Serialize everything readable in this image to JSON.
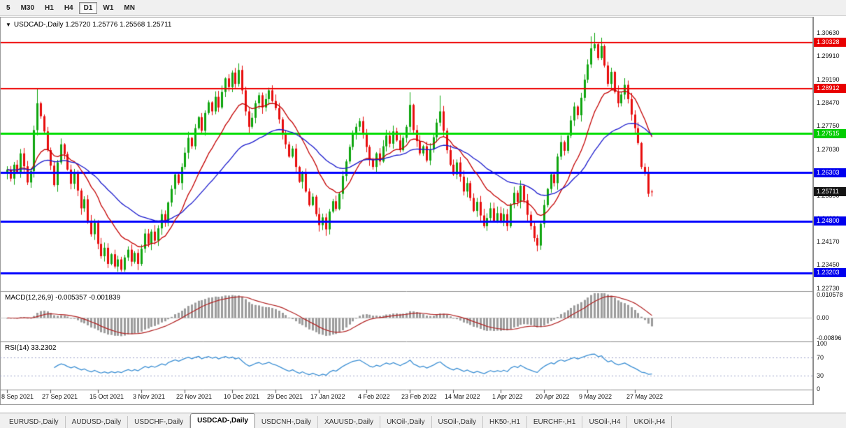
{
  "toolbar": {
    "timeframes": [
      "5",
      "M30",
      "H1",
      "H4",
      "D1",
      "W1",
      "MN"
    ],
    "active": "D1"
  },
  "header": {
    "dropdown_icon": "▼",
    "symbol": "USDCAD-,Daily",
    "ohlc": "1.25720 1.25776 1.25568 1.25711"
  },
  "price_axis": {
    "labels": [
      {
        "text": "1.30630",
        "price": 1.3063
      },
      {
        "text": "1.29910",
        "price": 1.2991
      },
      {
        "text": "1.29190",
        "price": 1.2919
      },
      {
        "text": "1.28470",
        "price": 1.2847
      },
      {
        "text": "1.27750",
        "price": 1.2775
      },
      {
        "text": "1.27030",
        "price": 1.2703
      },
      {
        "text": "1.26310",
        "price": 1.2631
      },
      {
        "text": "1.25590",
        "price": 1.2559
      },
      {
        "text": "1.24890",
        "price": 1.2489
      },
      {
        "text": "1.24170",
        "price": 1.2417
      },
      {
        "text": "1.23450",
        "price": 1.2345
      },
      {
        "text": "1.22730",
        "price": 1.2273
      }
    ]
  },
  "time_axis": {
    "labels": [
      {
        "text": "8 Sep 2021",
        "index": 0
      },
      {
        "text": "27 Sep 2021",
        "index": 13
      },
      {
        "text": "15 Oct 2021",
        "index": 27
      },
      {
        "text": "3 Nov 2021",
        "index": 40
      },
      {
        "text": "22 Nov 2021",
        "index": 53
      },
      {
        "text": "10 Dec 2021",
        "index": 67
      },
      {
        "text": "29 Dec 2021",
        "index": 80
      },
      {
        "text": "17 Jan 2022",
        "index": 93
      },
      {
        "text": "4 Feb 2022",
        "index": 107
      },
      {
        "text": "23 Feb 2022",
        "index": 120
      },
      {
        "text": "14 Mar 2022",
        "index": 133
      },
      {
        "text": "1 Apr 2022",
        "index": 147
      },
      {
        "text": "20 Apr 2022",
        "index": 160
      },
      {
        "text": "9 May 2022",
        "index": 173
      },
      {
        "text": "27 May 2022",
        "index": 187
      }
    ]
  },
  "chart_data": {
    "type": "candlestick",
    "symbol": "USDCAD",
    "timeframe": "Daily",
    "current_ohlc": {
      "open": "1.25720",
      "high": "1.25776",
      "low": "1.25568",
      "close": "1.25711"
    },
    "bull_color": "#0fa50f",
    "bear_color": "#e80d0d",
    "y_range": [
      1.2273,
      1.3063
    ],
    "first_open": 1.2628,
    "closes": [
      1.264,
      1.2612,
      1.2655,
      1.263,
      1.269,
      1.265,
      1.26,
      1.2635,
      1.2762,
      1.2845,
      1.2805,
      1.2758,
      1.27,
      1.2652,
      1.2592,
      1.2662,
      1.2718,
      1.2688,
      1.264,
      1.2596,
      1.263,
      1.2575,
      1.252,
      1.2548,
      1.2482,
      1.244,
      1.2475,
      1.241,
      1.2372,
      1.2398,
      1.2348,
      1.2378,
      1.234,
      1.2362,
      1.233,
      1.2368,
      1.2392,
      1.2355,
      1.2382,
      1.2348,
      1.2395,
      1.2442,
      1.241,
      1.2448,
      1.242,
      1.2458,
      1.2502,
      1.2475,
      1.2538,
      1.258,
      1.2625,
      1.2598,
      1.2648,
      1.2692,
      1.2738,
      1.2712,
      1.2768,
      1.2802,
      1.276,
      1.2815,
      1.2848,
      1.282,
      1.2865,
      1.2832,
      1.288,
      1.2922,
      1.2895,
      1.294,
      1.2905,
      1.2948,
      1.2885,
      1.282,
      1.2772,
      1.28,
      1.2845,
      1.287,
      1.2832,
      1.2858,
      1.2885,
      1.2852,
      1.283,
      1.2795,
      1.2752,
      1.2718,
      1.268,
      1.2705,
      1.2648,
      1.2602,
      1.2628,
      1.2572,
      1.253,
      1.2556,
      1.2502,
      1.2468,
      1.2492,
      1.2455,
      1.251,
      1.2542,
      1.2518,
      1.2565,
      1.262,
      1.2665,
      1.271,
      1.2748,
      1.2772,
      1.279,
      1.2752,
      1.271,
      1.2672,
      1.2648,
      1.269,
      1.2665,
      1.2712,
      1.2745,
      1.272,
      1.2758,
      1.273,
      1.27,
      1.2738,
      1.2772,
      1.284,
      1.2762,
      1.2728,
      1.269,
      1.2712,
      1.2668,
      1.2702,
      1.274,
      1.2785,
      1.282,
      1.276,
      1.27,
      1.2655,
      1.2625,
      1.2662,
      1.2618,
      1.2572,
      1.2598,
      1.2552,
      1.2512,
      1.254,
      1.2498,
      1.2465,
      1.249,
      1.252,
      1.2482,
      1.2505,
      1.2478,
      1.2502,
      1.2465,
      1.2532,
      1.2568,
      1.254,
      1.259,
      1.2545,
      1.25,
      1.2465,
      1.2428,
      1.2405,
      1.2472,
      1.253,
      1.258,
      1.2625,
      1.2598,
      1.268,
      1.2725,
      1.2698,
      1.2745,
      1.2792,
      1.2835,
      1.2808,
      1.2862,
      1.2918,
      1.2965,
      1.3015,
      1.3028,
      1.2985,
      1.3022,
      1.2962,
      1.2905,
      1.2942,
      1.288,
      1.2845,
      1.2872,
      1.2902,
      1.2858,
      1.281,
      1.2768,
      1.2722,
      1.2648,
      1.263,
      1.2565,
      1.25711
    ],
    "last_candle": {
      "open": 1.2572,
      "high": 1.25776,
      "low": 1.25568,
      "close": 1.25711
    },
    "wick_overrides": [
      {
        "i": 9,
        "high": 1.289
      },
      {
        "i": 120,
        "high": 1.2879
      },
      {
        "i": 129,
        "high": 1.2869
      },
      {
        "i": 174,
        "high": 1.3052
      },
      {
        "i": 175,
        "high": 1.3063
      },
      {
        "i": 177,
        "high": 1.3048
      }
    ],
    "overlays": [
      {
        "name": "ma-fast",
        "type": "ema",
        "period": 15,
        "color": "#c40000"
      },
      {
        "name": "ma-slow",
        "type": "ema",
        "period": 40,
        "color": "#1a1acd"
      }
    ],
    "hlines": [
      {
        "label": "1.30328",
        "price": 1.30328,
        "color": "#ee0000",
        "width": 2,
        "tag_bg": "#e80000"
      },
      {
        "label": "1.28912",
        "price": 1.28912,
        "color": "#ee0000",
        "width": 2,
        "tag_bg": "#e80000"
      },
      {
        "label": "1.27515",
        "price": 1.27515,
        "color": "#00dd00",
        "width": 3,
        "tag_bg": "#00cc00"
      },
      {
        "label": "1.26303",
        "price": 1.26303,
        "color": "#0000ff",
        "width": 3,
        "tag_bg": "#0000ee"
      },
      {
        "label": "1.24800",
        "price": 1.248,
        "color": "#0000ff",
        "width": 3,
        "tag_bg": "#0000ee"
      },
      {
        "label": "1.23203",
        "price": 1.23203,
        "color": "#0000ff",
        "width": 3,
        "tag_bg": "#0000ee"
      }
    ],
    "current_price": {
      "label": "1.25711",
      "price": 1.25711,
      "tag_bg": "#141414"
    }
  },
  "macd_panel": {
    "label": "MACD(12,26,9) -0.005357 -0.001839",
    "value": "-0.005357",
    "signal_value": "-0.001839",
    "params": {
      "fast": 12,
      "slow": 26,
      "signal": 9
    },
    "axis": [
      {
        "text": "0.010578",
        "value": 0.010578
      },
      {
        "text": "0.00",
        "value": 0
      },
      {
        "text": "-0.00896",
        "value": -0.00896
      }
    ],
    "histogram_color": "#9c9c9c",
    "signal_color": "#b22222"
  },
  "rsi_panel": {
    "label": "RSI(14) 33.2302",
    "value": "33.2302",
    "period": 14,
    "axis": [
      {
        "text": "100",
        "value": 100
      },
      {
        "text": "70",
        "value": 70
      },
      {
        "text": "30",
        "value": 30
      },
      {
        "text": "0",
        "value": 0
      }
    ],
    "levels": [
      30,
      70
    ],
    "line_color": "#3b8fd4",
    "level_color": "#9aa0c8"
  },
  "tabs": {
    "items": [
      "EURUSD-,Daily",
      "AUDUSD-,Daily",
      "USDCHF-,Daily",
      "USDCAD-,Daily",
      "USDCNH-,Daily",
      "XAUUSD-,Daily",
      "UKOil-,Daily",
      "USOil-,Daily",
      "HK50-,H1",
      "EURCHF-,H1",
      "USOil-,H4",
      "UKOil-,H4"
    ],
    "active": "USDCAD-,Daily"
  }
}
